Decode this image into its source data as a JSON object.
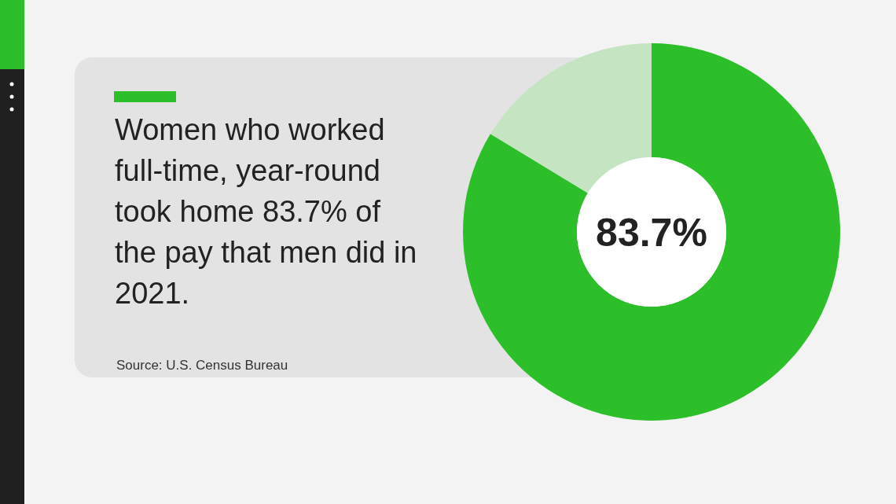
{
  "chart_data": {
    "type": "donut",
    "title": "Women who worked full-time, year-round took home 83.7% of the pay that men did in 2021.",
    "categories": [
      null,
      null
    ],
    "values": [
      83.7,
      16.3
    ],
    "colors": [
      "#2cbf2a",
      "#c4e4c2"
    ],
    "value_labels": [
      "83.7%",
      null
    ],
    "annotations": [
      "Source: U.S. Census Bureau"
    ]
  }
}
